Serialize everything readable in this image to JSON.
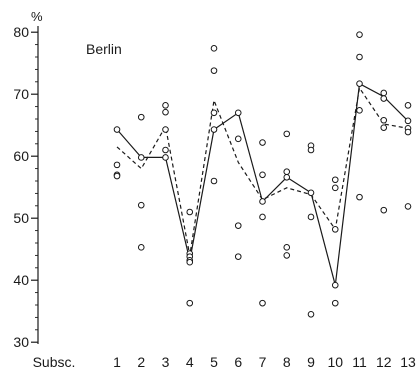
{
  "chart_data": {
    "type": "line",
    "title": "",
    "annotation": "Berlin",
    "y_unit": "%",
    "x_axis_title": "Subsc.",
    "categories": [
      "1",
      "2",
      "3",
      "4",
      "5",
      "6",
      "7",
      "8",
      "9",
      "10",
      "11",
      "12",
      "13"
    ],
    "y_ticks": [
      "30",
      "40",
      "50",
      "60",
      "70",
      "80"
    ],
    "ylim": [
      30,
      82
    ],
    "grid": false,
    "series": [
      {
        "style": "solid",
        "values": [
          64.3,
          59.8,
          59.8,
          43.2,
          64.3,
          67.0,
          52.7,
          56.6,
          54.1,
          39.2,
          71.7,
          69.6,
          65.7
        ]
      },
      {
        "style": "dashed",
        "values": [
          61.5,
          58.0,
          64.8,
          44.0,
          69.0,
          59.0,
          53.0,
          54.9,
          53.8,
          48.2,
          71.0,
          65.2,
          64.5
        ]
      }
    ],
    "points": [
      [
        64.3,
        58.6,
        57.0,
        56.8
      ],
      [
        66.3,
        59.8,
        52.1,
        45.3
      ],
      [
        68.2,
        67.1,
        64.3,
        61.0,
        59.8
      ],
      [
        51.0,
        44.3,
        43.8,
        43.2,
        42.9,
        36.3
      ],
      [
        77.4,
        73.8,
        67.0,
        64.3,
        56.0
      ],
      [
        67.0,
        62.8,
        48.8,
        43.8
      ],
      [
        62.2,
        57.0,
        52.7,
        50.2,
        36.3
      ],
      [
        63.6,
        57.5,
        56.6,
        45.3,
        44.0
      ],
      [
        61.7,
        61.0,
        54.1,
        50.2,
        34.5
      ],
      [
        56.2,
        54.9,
        48.2,
        39.2,
        36.3
      ],
      [
        79.6,
        76.0,
        71.7,
        67.4,
        53.4
      ],
      [
        70.2,
        69.3,
        65.8,
        64.6,
        51.3
      ],
      [
        68.2,
        65.7,
        64.5,
        63.9,
        51.9
      ]
    ]
  }
}
